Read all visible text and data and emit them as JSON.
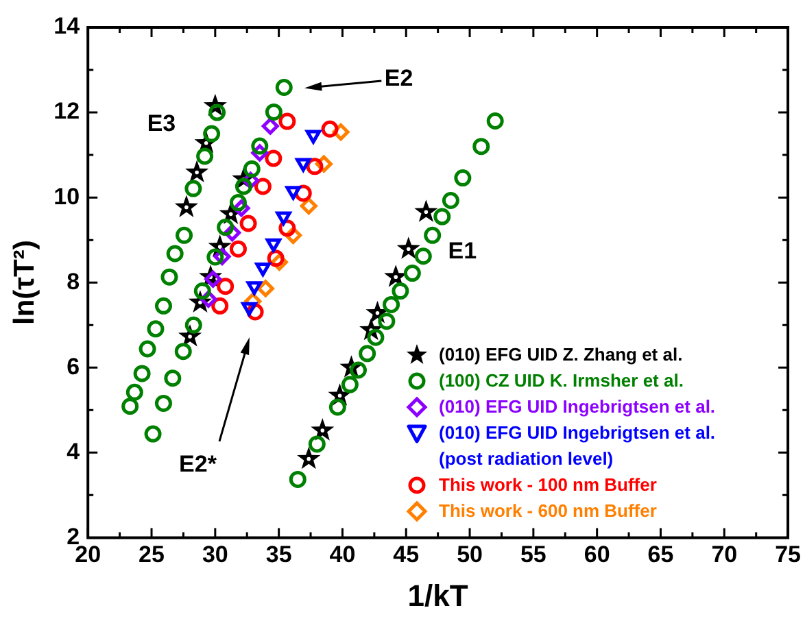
{
  "chart_data": {
    "type": "scatter",
    "xlabel": "1/kT",
    "ylabel": "ln(τT²)",
    "xlim": [
      20,
      75
    ],
    "ylim": [
      2,
      14
    ],
    "xticks": [
      20,
      25,
      30,
      35,
      40,
      45,
      50,
      55,
      60,
      65,
      70,
      75
    ],
    "yticks": [
      2,
      4,
      6,
      8,
      10,
      12,
      14
    ],
    "grid": false,
    "legend": "bottom right",
    "annotations": [
      "E3",
      "E2",
      "E2*",
      "E1"
    ],
    "series": [
      {
        "name": "(010) EFG UID Z. Zhang et al.",
        "color": "#000000",
        "marker": "star",
        "x": [
          30.0,
          29.29,
          28.56,
          27.74,
          32.24,
          31.23,
          30.37,
          29.64,
          28.82,
          28.02,
          46.57,
          45.19,
          44.19,
          42.75,
          42.25,
          40.7,
          39.79,
          38.43,
          37.35
        ],
        "values": [
          12.15,
          11.28,
          10.59,
          9.77,
          10.43,
          9.61,
          8.84,
          8.13,
          7.53,
          6.73,
          9.66,
          8.79,
          8.13,
          7.28,
          6.88,
          6.0,
          5.34,
          4.52,
          3.85
        ]
      },
      {
        "name": "(100) CZ UID K. Irmsher et al.",
        "color": "#008000",
        "marker": "circle",
        "x": [
          30.15,
          29.72,
          29.18,
          28.28,
          27.56,
          26.84,
          26.4,
          25.94,
          25.32,
          24.68,
          24.25,
          23.67,
          23.31,
          35.41,
          34.61,
          33.5,
          32.88,
          32.24,
          31.81,
          30.8,
          30.0,
          29.0,
          28.3,
          27.49,
          26.66,
          25.94,
          25.11,
          52.0,
          50.9,
          49.45,
          48.51,
          47.83,
          47.07,
          46.35,
          45.49,
          44.55,
          43.83,
          43.47,
          42.61,
          41.95,
          41.24,
          40.59,
          39.62,
          38.0,
          36.49
        ],
        "values": [
          12.0,
          11.5,
          10.97,
          10.21,
          9.11,
          8.68,
          8.13,
          7.45,
          6.91,
          6.44,
          5.86,
          5.42,
          5.09,
          12.59,
          12.01,
          11.21,
          10.67,
          10.26,
          9.88,
          9.3,
          8.6,
          7.8,
          7.0,
          6.38,
          5.75,
          5.16,
          4.44,
          11.8,
          11.2,
          10.46,
          9.93,
          9.55,
          9.11,
          8.62,
          8.22,
          7.8,
          7.48,
          7.09,
          6.71,
          6.33,
          5.94,
          5.6,
          5.07,
          4.2,
          3.37
        ]
      },
      {
        "name": "(010) EFG UID Ingebrigtsen et al.",
        "color": "#8b00ff",
        "marker": "diamond",
        "x": [
          34.33,
          33.5,
          32.78,
          32.06,
          31.34,
          30.55,
          29.83,
          29.47
        ],
        "values": [
          11.68,
          11.05,
          10.4,
          9.75,
          9.17,
          8.61,
          8.08,
          7.61
        ]
      },
      {
        "name": "(010) EFG UID Ingebrigtsen et al. (post radiation level)",
        "color": "#0000ff",
        "marker": "triangle",
        "x": [
          37.71,
          36.92,
          36.13,
          35.37,
          34.58,
          33.75,
          33.07,
          32.67
        ],
        "values": [
          11.47,
          10.81,
          10.15,
          9.55,
          8.92,
          8.35,
          7.91,
          7.42
        ]
      },
      {
        "name": "This work - 100 nm Buffer",
        "color": "#ff0000",
        "marker": "circle",
        "x": [
          35.66,
          34.58,
          33.75,
          32.6,
          31.81,
          30.8,
          30.37,
          39.01,
          37.82,
          36.92,
          35.66,
          34.76,
          33.14
        ],
        "values": [
          11.79,
          10.92,
          10.26,
          9.39,
          8.79,
          7.91,
          7.45,
          11.61,
          10.73,
          10.1,
          9.28,
          8.57,
          7.31
        ]
      },
      {
        "name": "This work - 600 nm Buffer",
        "color": "#ff7f00",
        "marker": "diamond",
        "x": [
          39.87,
          38.54,
          37.35,
          36.13,
          35.04,
          33.96,
          32.96
        ],
        "values": [
          11.54,
          10.79,
          9.8,
          9.11,
          8.48,
          7.86,
          7.56
        ]
      }
    ]
  }
}
